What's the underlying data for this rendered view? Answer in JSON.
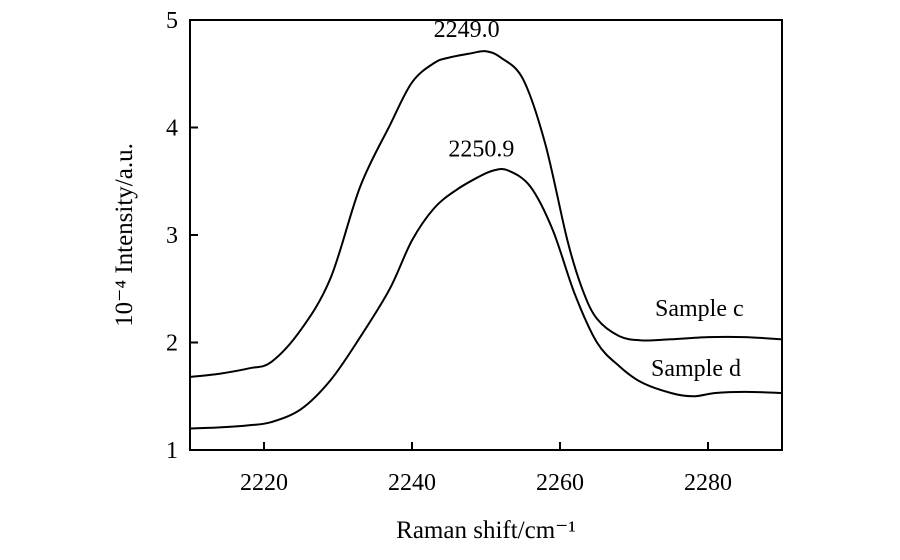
{
  "chart_data": {
    "type": "line",
    "xlabel": "Raman shift/cm⁻¹",
    "ylabel": "10⁻⁴ Intensity/a.u.",
    "xlim": [
      2210,
      2290
    ],
    "ylim": [
      1,
      5
    ],
    "xticks": [
      2220,
      2240,
      2260,
      2280
    ],
    "yticks": [
      1,
      2,
      3,
      4,
      5
    ],
    "grid": false,
    "series": [
      {
        "name": "Sample c",
        "x": [
          2210,
          2214,
          2218,
          2221,
          2225,
          2229,
          2233,
          2237,
          2240,
          2243,
          2245,
          2248,
          2250,
          2252,
          2255,
          2258,
          2261,
          2263,
          2265,
          2268,
          2271,
          2275,
          2280,
          2285,
          2290
        ],
        "y": [
          1.68,
          1.71,
          1.76,
          1.82,
          2.12,
          2.6,
          3.45,
          4.02,
          4.42,
          4.6,
          4.65,
          4.69,
          4.71,
          4.65,
          4.45,
          3.85,
          2.95,
          2.5,
          2.22,
          2.06,
          2.02,
          2.03,
          2.05,
          2.05,
          2.03
        ]
      },
      {
        "name": "Sample d",
        "x": [
          2210,
          2214,
          2218,
          2221,
          2225,
          2229,
          2233,
          2237,
          2240,
          2243,
          2246,
          2249,
          2251,
          2253,
          2256,
          2259,
          2262,
          2265,
          2268,
          2271,
          2275,
          2278,
          2281,
          2285,
          2290
        ],
        "y": [
          1.2,
          1.21,
          1.23,
          1.26,
          1.38,
          1.65,
          2.05,
          2.5,
          2.95,
          3.25,
          3.42,
          3.54,
          3.6,
          3.6,
          3.45,
          3.05,
          2.45,
          2.0,
          1.78,
          1.63,
          1.53,
          1.5,
          1.53,
          1.54,
          1.53
        ]
      }
    ],
    "annotations": [
      {
        "text": "2249.0",
        "x": 2249,
        "y": 4.71
      },
      {
        "text": "2250.9",
        "x": 2251,
        "y": 3.6
      }
    ]
  }
}
